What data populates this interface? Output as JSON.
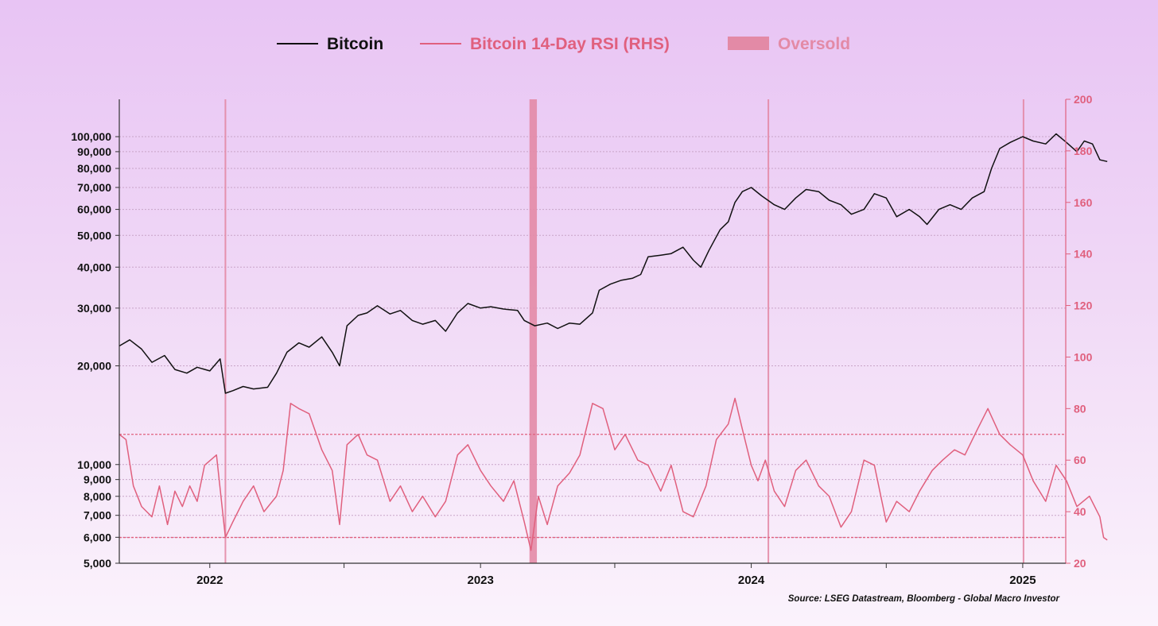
{
  "colors": {
    "bitcoin": "#111111",
    "rsi": "#e0607e",
    "oversold": "#e38aa6",
    "axis_right": "#e0607e",
    "grid": "#c8a4c8"
  },
  "chart_data": {
    "type": "line",
    "x_range": [
      "2021-09-01",
      "2025-02-28"
    ],
    "legend": {
      "placement": "top-center",
      "entries": [
        {
          "key": "bitcoin",
          "label": "Bitcoin",
          "style": "line"
        },
        {
          "key": "rsi",
          "label": "Bitcoin 14-Day RSI (RHS)",
          "style": "line"
        },
        {
          "key": "oversold",
          "label": "Oversold",
          "style": "band"
        }
      ]
    },
    "left_axis": {
      "scale": "log",
      "range": [
        5000,
        130000
      ],
      "ticks": [
        5000,
        6000,
        7000,
        8000,
        9000,
        10000,
        20000,
        30000,
        40000,
        50000,
        60000,
        70000,
        80000,
        90000,
        100000
      ],
      "tick_labels": [
        "5,000",
        "6,000",
        "7,000",
        "8,000",
        "9,000",
        "10,000",
        "20,000",
        "30,000",
        "40,000",
        "50,000",
        "60,000",
        "70,000",
        "80,000",
        "90,000",
        "100,000"
      ]
    },
    "right_axis": {
      "scale": "linear",
      "range": [
        20,
        200
      ],
      "ticks": [
        20,
        40,
        60,
        80,
        100,
        120,
        140,
        160,
        180,
        200
      ],
      "tick_labels": [
        "20",
        "40",
        "60",
        "80",
        "100",
        "120",
        "140",
        "160",
        "180",
        "200"
      ]
    },
    "x_axis": {
      "labels": [
        {
          "date": "2022-01-01",
          "label": "2022"
        },
        {
          "date": "2023-01-01",
          "label": "2023"
        },
        {
          "date": "2024-01-01",
          "label": "2024"
        },
        {
          "date": "2025-01-01",
          "label": "2025"
        }
      ],
      "minor_ticks": [
        "2022-07-01",
        "2023-07-01",
        "2024-07-01"
      ]
    },
    "reference_lines_rsi": [
      70,
      30
    ],
    "oversold_periods": [
      {
        "start": "2022-01-21",
        "end": "2022-01-23"
      },
      {
        "start": "2023-03-08",
        "end": "2023-03-18"
      },
      {
        "start": "2024-01-23",
        "end": "2024-01-25"
      },
      {
        "start": "2025-01-01",
        "end": "2025-01-03"
      }
    ],
    "series": [
      {
        "key": "bitcoin",
        "name": "Bitcoin",
        "axis": "left",
        "points": [
          [
            "2021-09-01",
            23000
          ],
          [
            "2021-09-15",
            24000
          ],
          [
            "2021-10-01",
            22500
          ],
          [
            "2021-10-15",
            20500
          ],
          [
            "2021-11-01",
            21500
          ],
          [
            "2021-11-15",
            19500
          ],
          [
            "2021-12-01",
            19000
          ],
          [
            "2021-12-15",
            19800
          ],
          [
            "2022-01-01",
            19300
          ],
          [
            "2022-01-15",
            21000
          ],
          [
            "2022-01-22",
            16500
          ],
          [
            "2022-02-01",
            16800
          ],
          [
            "2022-02-15",
            17300
          ],
          [
            "2022-03-01",
            17000
          ],
          [
            "2022-03-20",
            17200
          ],
          [
            "2022-04-01",
            19000
          ],
          [
            "2022-04-15",
            22000
          ],
          [
            "2022-05-01",
            23500
          ],
          [
            "2022-05-15",
            22800
          ],
          [
            "2022-06-01",
            24500
          ],
          [
            "2022-06-15",
            22000
          ],
          [
            "2022-06-25",
            20000
          ],
          [
            "2022-07-05",
            26500
          ],
          [
            "2022-07-20",
            28500
          ],
          [
            "2022-08-01",
            29000
          ],
          [
            "2022-08-15",
            30500
          ],
          [
            "2022-09-01",
            28800
          ],
          [
            "2022-09-15",
            29500
          ],
          [
            "2022-10-01",
            27500
          ],
          [
            "2022-10-15",
            26800
          ],
          [
            "2022-11-01",
            27500
          ],
          [
            "2022-11-15",
            25500
          ],
          [
            "2022-12-01",
            29000
          ],
          [
            "2022-12-15",
            31000
          ],
          [
            "2023-01-01",
            30000
          ],
          [
            "2023-01-15",
            30300
          ],
          [
            "2023-02-01",
            29800
          ],
          [
            "2023-02-20",
            29500
          ],
          [
            "2023-03-01",
            27500
          ],
          [
            "2023-03-15",
            26500
          ],
          [
            "2023-04-01",
            27000
          ],
          [
            "2023-04-15",
            26000
          ],
          [
            "2023-05-01",
            27000
          ],
          [
            "2023-05-15",
            26800
          ],
          [
            "2023-06-01",
            29000
          ],
          [
            "2023-06-10",
            34000
          ],
          [
            "2023-06-25",
            35500
          ],
          [
            "2023-07-10",
            36500
          ],
          [
            "2023-07-25",
            37000
          ],
          [
            "2023-08-05",
            38000
          ],
          [
            "2023-08-15",
            43000
          ],
          [
            "2023-09-01",
            43500
          ],
          [
            "2023-09-15",
            44000
          ],
          [
            "2023-10-01",
            46000
          ],
          [
            "2023-10-15",
            42000
          ],
          [
            "2023-10-25",
            40000
          ],
          [
            "2023-11-05",
            45000
          ],
          [
            "2023-11-20",
            52000
          ],
          [
            "2023-12-01",
            55000
          ],
          [
            "2023-12-10",
            63000
          ],
          [
            "2023-12-20",
            68000
          ],
          [
            "2024-01-01",
            70000
          ],
          [
            "2024-01-15",
            66000
          ],
          [
            "2024-02-01",
            62000
          ],
          [
            "2024-02-15",
            60000
          ],
          [
            "2024-03-01",
            65000
          ],
          [
            "2024-03-15",
            69000
          ],
          [
            "2024-04-01",
            68000
          ],
          [
            "2024-04-15",
            64000
          ],
          [
            "2024-05-01",
            62000
          ],
          [
            "2024-05-15",
            58000
          ],
          [
            "2024-06-01",
            60000
          ],
          [
            "2024-06-15",
            67000
          ],
          [
            "2024-07-01",
            65000
          ],
          [
            "2024-07-15",
            57000
          ],
          [
            "2024-08-01",
            60000
          ],
          [
            "2024-08-15",
            57000
          ],
          [
            "2024-08-25",
            54000
          ],
          [
            "2024-09-10",
            60000
          ],
          [
            "2024-09-25",
            62000
          ],
          [
            "2024-10-10",
            60000
          ],
          [
            "2024-10-25",
            65000
          ],
          [
            "2024-11-10",
            68000
          ],
          [
            "2024-11-20",
            80000
          ],
          [
            "2024-12-01",
            92000
          ],
          [
            "2024-12-15",
            96000
          ],
          [
            "2025-01-01",
            100000
          ],
          [
            "2025-01-15",
            97000
          ],
          [
            "2025-02-01",
            95000
          ],
          [
            "2025-02-15",
            102000
          ],
          [
            "2025-03-01",
            96000
          ],
          [
            "2025-03-15",
            90000
          ],
          [
            "2025-03-25",
            97000
          ],
          [
            "2025-04-05",
            95000
          ],
          [
            "2025-04-15",
            85000
          ],
          [
            "2025-04-25",
            84000
          ]
        ]
      },
      {
        "key": "rsi",
        "name": "Bitcoin 14-Day RSI (RHS)",
        "axis": "right",
        "points": [
          [
            "2021-09-01",
            70
          ],
          [
            "2021-09-10",
            68
          ],
          [
            "2021-09-20",
            50
          ],
          [
            "2021-10-01",
            42
          ],
          [
            "2021-10-15",
            38
          ],
          [
            "2021-10-25",
            50
          ],
          [
            "2021-11-05",
            35
          ],
          [
            "2021-11-15",
            48
          ],
          [
            "2021-11-25",
            42
          ],
          [
            "2021-12-05",
            50
          ],
          [
            "2021-12-15",
            44
          ],
          [
            "2021-12-25",
            58
          ],
          [
            "2022-01-10",
            62
          ],
          [
            "2022-01-22",
            30
          ],
          [
            "2022-02-01",
            36
          ],
          [
            "2022-02-15",
            44
          ],
          [
            "2022-03-01",
            50
          ],
          [
            "2022-03-15",
            40
          ],
          [
            "2022-04-01",
            46
          ],
          [
            "2022-04-10",
            56
          ],
          [
            "2022-04-20",
            82
          ],
          [
            "2022-05-01",
            80
          ],
          [
            "2022-05-15",
            78
          ],
          [
            "2022-06-01",
            64
          ],
          [
            "2022-06-15",
            56
          ],
          [
            "2022-06-25",
            35
          ],
          [
            "2022-07-05",
            66
          ],
          [
            "2022-07-20",
            70
          ],
          [
            "2022-08-01",
            62
          ],
          [
            "2022-08-15",
            60
          ],
          [
            "2022-09-01",
            44
          ],
          [
            "2022-09-15",
            50
          ],
          [
            "2022-10-01",
            40
          ],
          [
            "2022-10-15",
            46
          ],
          [
            "2022-11-01",
            38
          ],
          [
            "2022-11-15",
            44
          ],
          [
            "2022-12-01",
            62
          ],
          [
            "2022-12-15",
            66
          ],
          [
            "2023-01-01",
            56
          ],
          [
            "2023-01-15",
            50
          ],
          [
            "2023-02-01",
            44
          ],
          [
            "2023-02-15",
            52
          ],
          [
            "2023-03-01",
            36
          ],
          [
            "2023-03-10",
            25
          ],
          [
            "2023-03-20",
            46
          ],
          [
            "2023-04-01",
            35
          ],
          [
            "2023-04-15",
            50
          ],
          [
            "2023-05-01",
            55
          ],
          [
            "2023-05-15",
            62
          ],
          [
            "2023-06-01",
            82
          ],
          [
            "2023-06-15",
            80
          ],
          [
            "2023-07-01",
            64
          ],
          [
            "2023-07-15",
            70
          ],
          [
            "2023-08-01",
            60
          ],
          [
            "2023-08-15",
            58
          ],
          [
            "2023-09-01",
            48
          ],
          [
            "2023-09-15",
            58
          ],
          [
            "2023-10-01",
            40
          ],
          [
            "2023-10-15",
            38
          ],
          [
            "2023-11-01",
            50
          ],
          [
            "2023-11-15",
            68
          ],
          [
            "2023-12-01",
            74
          ],
          [
            "2023-12-10",
            84
          ],
          [
            "2023-12-20",
            72
          ],
          [
            "2024-01-01",
            58
          ],
          [
            "2024-01-10",
            52
          ],
          [
            "2024-01-20",
            60
          ],
          [
            "2024-02-01",
            48
          ],
          [
            "2024-02-15",
            42
          ],
          [
            "2024-03-01",
            56
          ],
          [
            "2024-03-15",
            60
          ],
          [
            "2024-04-01",
            50
          ],
          [
            "2024-04-15",
            46
          ],
          [
            "2024-05-01",
            34
          ],
          [
            "2024-05-15",
            40
          ],
          [
            "2024-06-01",
            60
          ],
          [
            "2024-06-15",
            58
          ],
          [
            "2024-07-01",
            36
          ],
          [
            "2024-07-15",
            44
          ],
          [
            "2024-08-01",
            40
          ],
          [
            "2024-08-15",
            48
          ],
          [
            "2024-09-01",
            56
          ],
          [
            "2024-09-15",
            60
          ],
          [
            "2024-10-01",
            64
          ],
          [
            "2024-10-15",
            62
          ],
          [
            "2024-11-01",
            72
          ],
          [
            "2024-11-15",
            80
          ],
          [
            "2024-12-01",
            70
          ],
          [
            "2024-12-15",
            66
          ],
          [
            "2025-01-01",
            62
          ],
          [
            "2025-01-15",
            52
          ],
          [
            "2025-02-01",
            44
          ],
          [
            "2025-02-15",
            58
          ],
          [
            "2025-03-01",
            52
          ],
          [
            "2025-03-15",
            42
          ],
          [
            "2025-04-01",
            46
          ],
          [
            "2025-04-15",
            38
          ],
          [
            "2025-04-20",
            30
          ],
          [
            "2025-04-25",
            29
          ]
        ]
      }
    ],
    "source": "Source: LSEG Datastream, Bloomberg - Global Macro Investor"
  }
}
